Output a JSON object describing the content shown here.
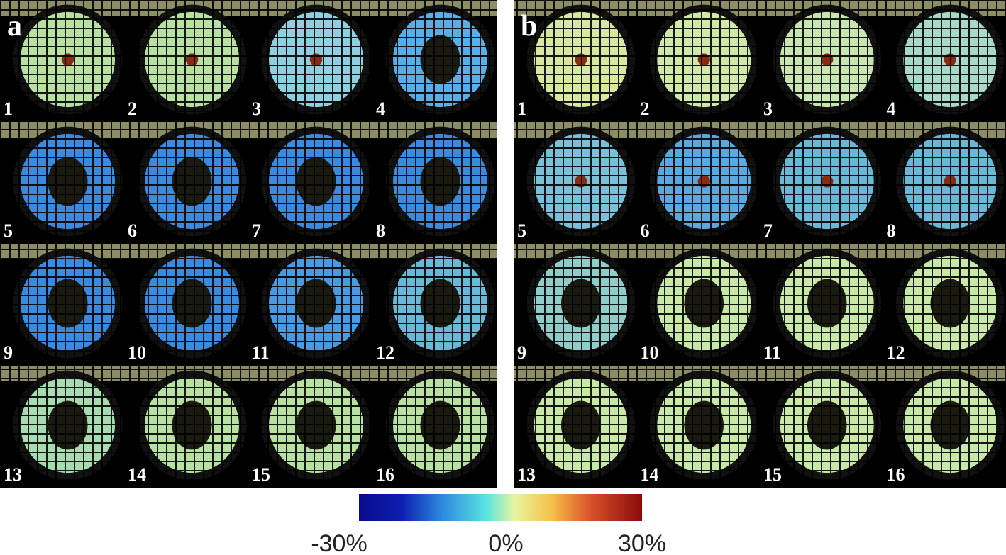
{
  "panels": [
    {
      "label": "a",
      "tiles": [
        "1",
        "2",
        "3",
        "4",
        "5",
        "6",
        "7",
        "8",
        "9",
        "10",
        "11",
        "12",
        "13",
        "14",
        "15",
        "16"
      ]
    },
    {
      "label": "b",
      "tiles": [
        "1",
        "2",
        "3",
        "4",
        "5",
        "6",
        "7",
        "8",
        "9",
        "10",
        "11",
        "12",
        "13",
        "14",
        "15",
        "16"
      ]
    }
  ],
  "colorbar": {
    "labels": [
      "-30%",
      "0%",
      "30%"
    ]
  }
}
